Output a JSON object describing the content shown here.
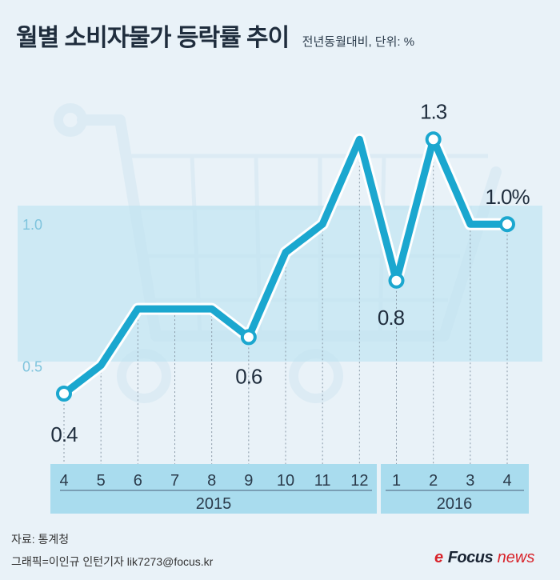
{
  "header": {
    "title": "월별 소비자물가 등락률 추이",
    "subtitle": "전년동월대비, 단위: %"
  },
  "chart_data": {
    "type": "line",
    "title": "월별 소비자물가 등락률 추이",
    "subtitle": "전년동월대비, 단위: %",
    "categories": [
      "4",
      "5",
      "6",
      "7",
      "8",
      "9",
      "10",
      "11",
      "12",
      "1",
      "2",
      "3",
      "4"
    ],
    "years": [
      {
        "label": "2015",
        "months": [
          "4",
          "5",
          "6",
          "7",
          "8",
          "9",
          "10",
          "11",
          "12"
        ]
      },
      {
        "label": "2016",
        "months": [
          "1",
          "2",
          "3",
          "4"
        ]
      }
    ],
    "series": [
      {
        "values": [
          0.4,
          0.5,
          0.7,
          0.7,
          0.7,
          0.6,
          0.9,
          1.0,
          1.3,
          0.8,
          1.3,
          1.0,
          1.0
        ]
      }
    ],
    "data_labels": [
      {
        "index": 0,
        "text": "0.4"
      },
      {
        "index": 5,
        "text": "0.6"
      },
      {
        "index": 9,
        "text": "0.8"
      },
      {
        "index": 10,
        "text": "1.3"
      },
      {
        "index": 12,
        "text": "1.0%"
      }
    ],
    "yticks": [
      "1.0",
      "0.5"
    ],
    "ylim": [
      0.35,
      1.35
    ],
    "colors": {
      "line": "#1ba7cf",
      "band": "#bfe4f1",
      "axis_band": "#a9dcee",
      "label": "#1f2d3d",
      "tick": "#7fc4dd"
    }
  },
  "footer": {
    "source": "자료: 통계청",
    "credit": "그래픽=이인규 인턴기자 lik7273@focus.kr"
  },
  "logo": {
    "mark": "e",
    "word1": "Focus",
    "word2": "news"
  }
}
